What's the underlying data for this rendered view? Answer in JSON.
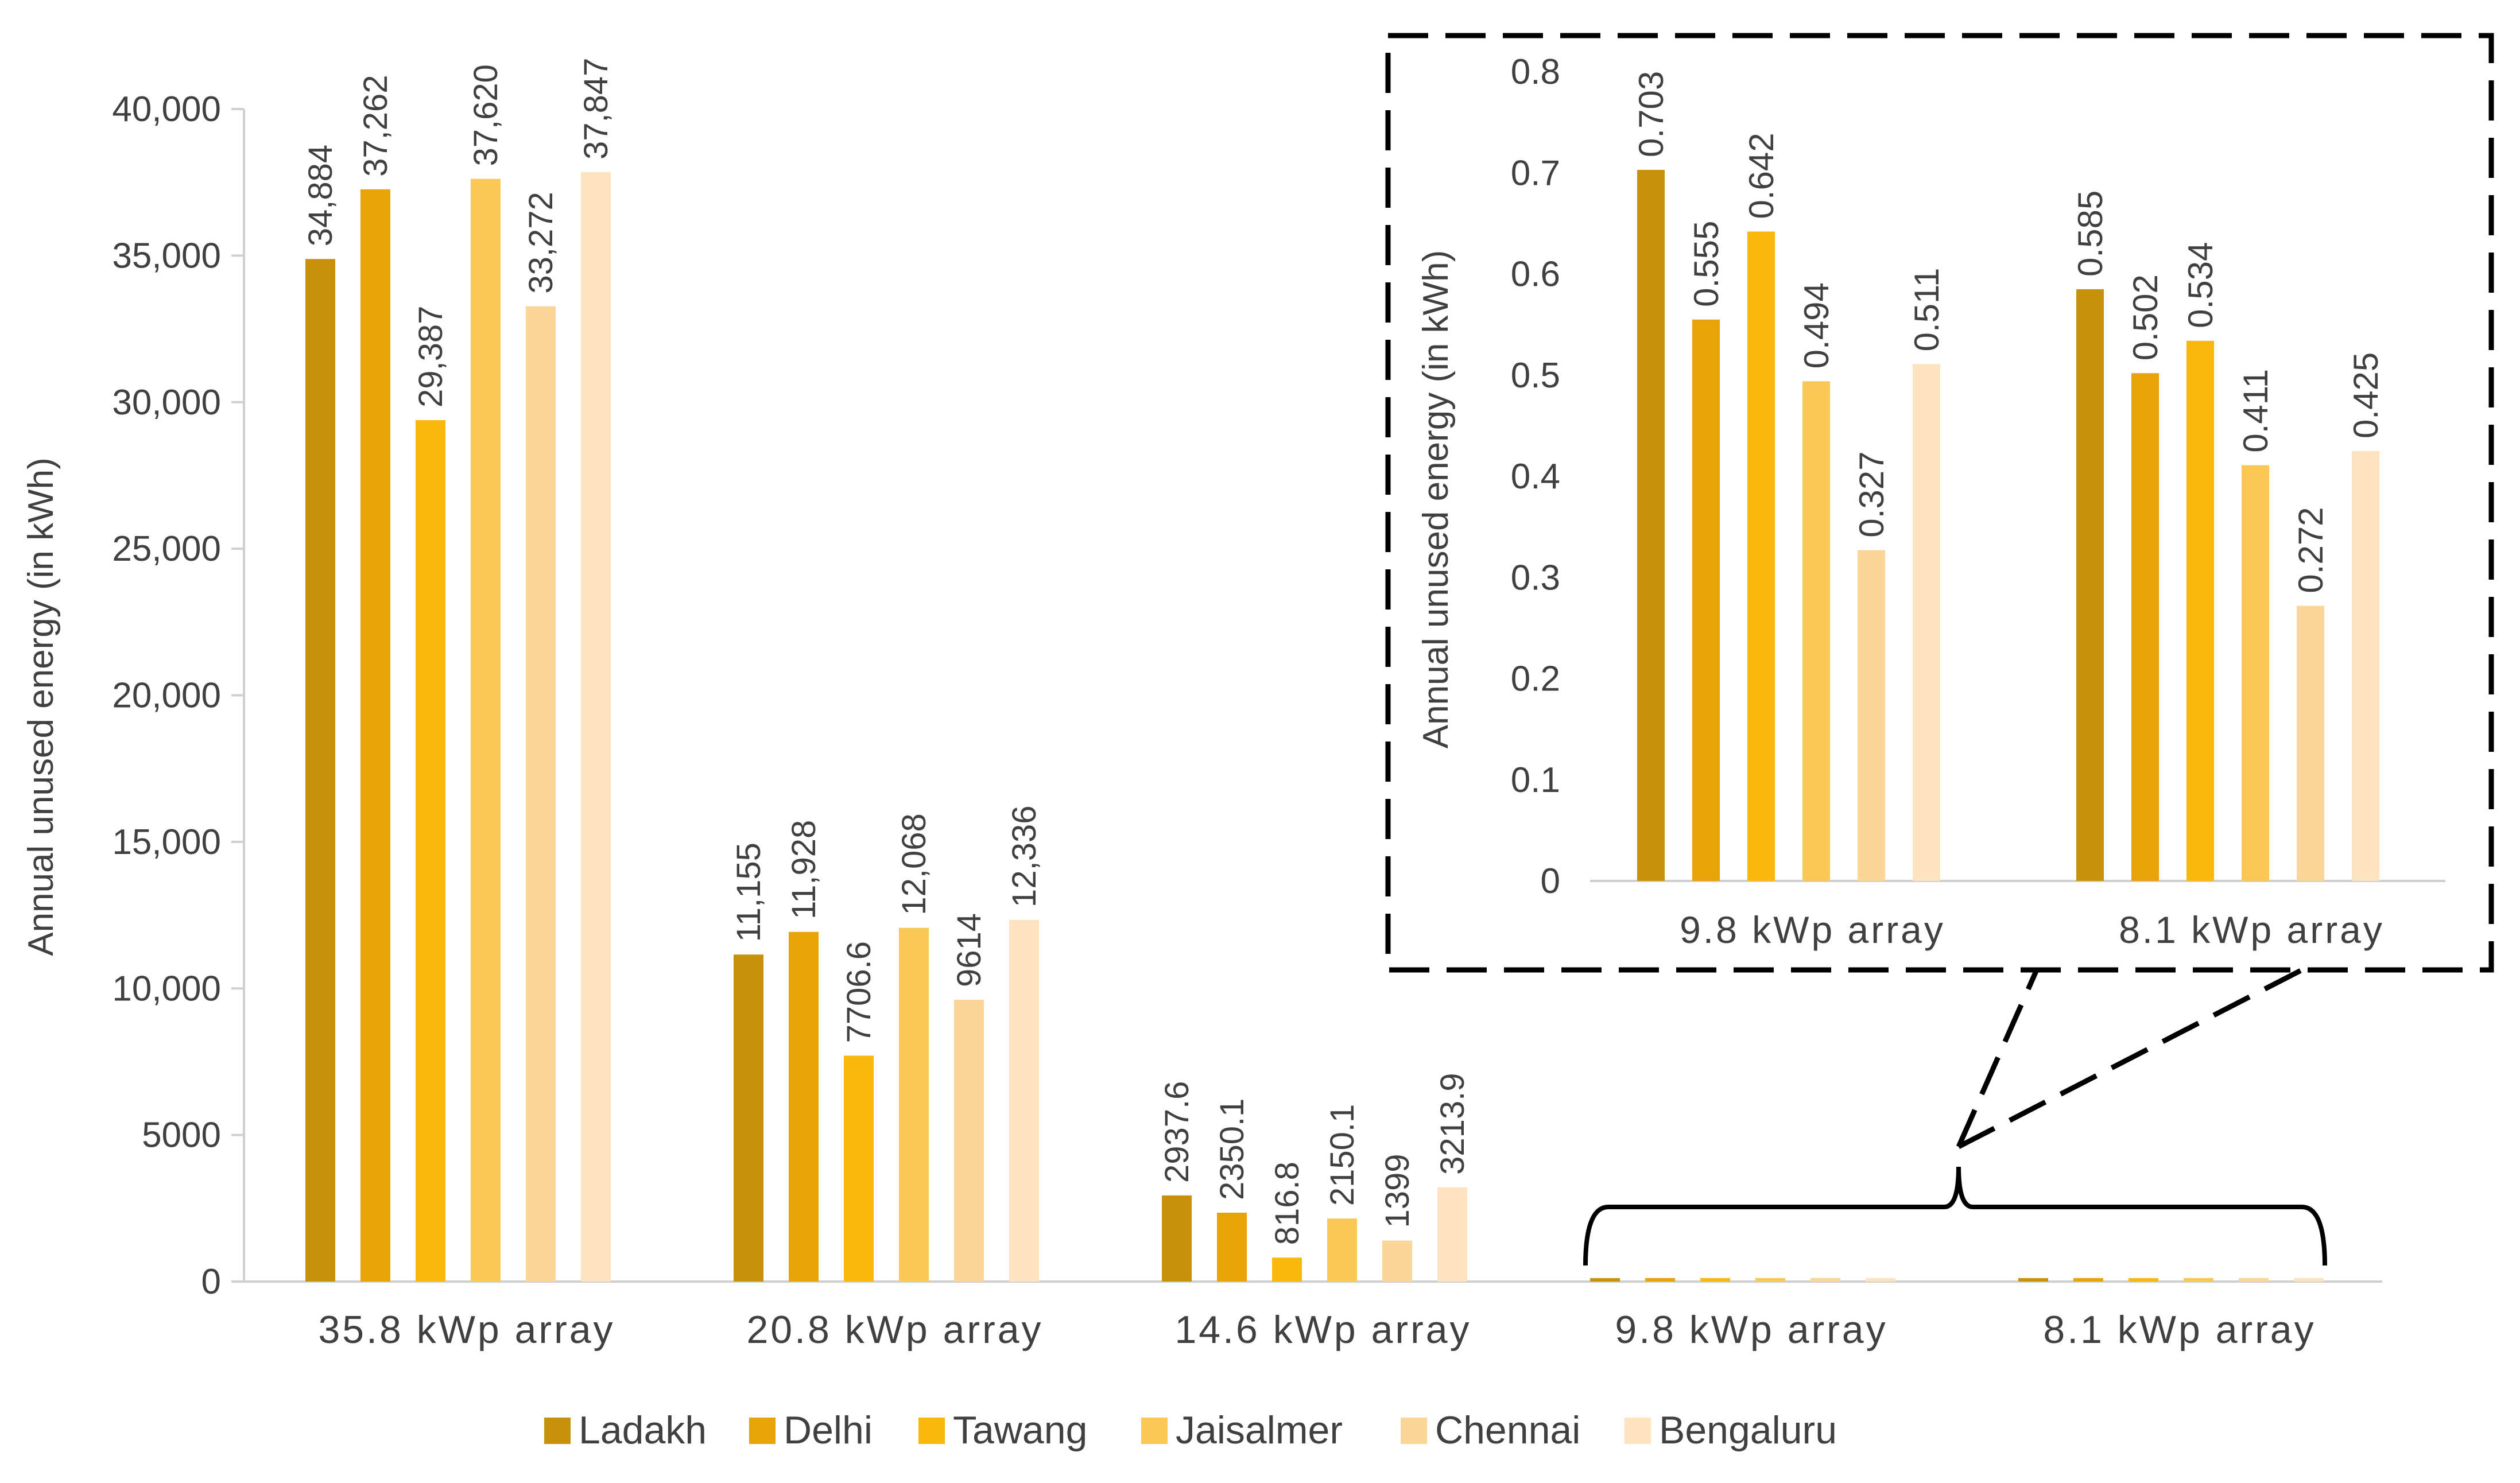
{
  "chart_data": [
    {
      "type": "bar",
      "title": "",
      "xlabel": "",
      "ylabel": "Annual unused energy (in kWh)",
      "ylim": [
        0,
        40000
      ],
      "yticks": [
        0,
        5000,
        10000,
        15000,
        20000,
        25000,
        30000,
        35000,
        40000
      ],
      "ytick_labels": [
        "0",
        "5000",
        "10,000",
        "15,000",
        "20,000",
        "25,000",
        "30,000",
        "35,000",
        "40,000"
      ],
      "grid": false,
      "categories": [
        "35.8 kWp array",
        "20.8 kWp array",
        "14.6 kWp array",
        "9.8 kWp array",
        "8.1 kWp array"
      ],
      "series": [
        {
          "name": "Ladakh",
          "color": "#C8910A",
          "values": [
            34884,
            11155,
            2937.6,
            0.703,
            0.585
          ],
          "labels": [
            "34,884",
            "11,155",
            "2937.6",
            "",
            ""
          ]
        },
        {
          "name": "Delhi",
          "color": "#E8A406",
          "values": [
            37262,
            11928,
            2350.1,
            0.555,
            0.502
          ],
          "labels": [
            "37,262",
            "11,928",
            "2350.1",
            "",
            ""
          ]
        },
        {
          "name": "Tawang",
          "color": "#F9B90C",
          "values": [
            29387,
            7706.6,
            816.8,
            0.642,
            0.534
          ],
          "labels": [
            "29,387",
            "7706.6",
            "816.8",
            "",
            ""
          ]
        },
        {
          "name": "Jaisalmer",
          "color": "#FAC854",
          "values": [
            37620,
            12068,
            2150.1,
            0.494,
            0.411
          ],
          "labels": [
            "37,620",
            "12,068",
            "2150.1",
            "",
            ""
          ]
        },
        {
          "name": "Chennai",
          "color": "#FBD696",
          "values": [
            33272,
            9614,
            1399,
            0.327,
            0.272
          ],
          "labels": [
            "33,272",
            "9614",
            "1399",
            "",
            ""
          ]
        },
        {
          "name": "Bengaluru",
          "color": "#FDE3BE",
          "values": [
            37847,
            12336,
            3213.9,
            0.511,
            0.425
          ],
          "labels": [
            "37,847",
            "12,336",
            "3213.9",
            "",
            ""
          ]
        }
      ],
      "legend": "bottom"
    },
    {
      "type": "bar",
      "title": "",
      "xlabel": "",
      "ylabel": "Annual unused energy (in kWh)",
      "ylim": [
        0,
        0.8
      ],
      "yticks": [
        0,
        0.1,
        0.2,
        0.3,
        0.4,
        0.5,
        0.6,
        0.7,
        0.8
      ],
      "ytick_labels": [
        "0",
        "0.1",
        "0.2",
        "0.3",
        "0.4",
        "0.5",
        "0.6",
        "0.7",
        "0.8"
      ],
      "grid": false,
      "categories": [
        "9.8 kWp array",
        "8.1 kWp array"
      ],
      "series": [
        {
          "name": "Ladakh",
          "color": "#C8910A",
          "values": [
            0.703,
            0.585
          ],
          "labels": [
            "0.703",
            "0.585"
          ]
        },
        {
          "name": "Delhi",
          "color": "#E8A406",
          "values": [
            0.555,
            0.502
          ],
          "labels": [
            "0.555",
            "0.502"
          ]
        },
        {
          "name": "Tawang",
          "color": "#F9B90C",
          "values": [
            0.642,
            0.534
          ],
          "labels": [
            "0.642",
            "0.534"
          ]
        },
        {
          "name": "Jaisalmer",
          "color": "#FAC854",
          "values": [
            0.494,
            0.411
          ],
          "labels": [
            "0.494",
            "0.411"
          ]
        },
        {
          "name": "Chennai",
          "color": "#FBD696",
          "values": [
            0.327,
            0.272
          ],
          "labels": [
            "0.327",
            "0.272"
          ]
        },
        {
          "name": "Bengaluru",
          "color": "#FDE3BE",
          "values": [
            0.511,
            0.425
          ],
          "labels": [
            "0.511",
            "0.425"
          ]
        }
      ],
      "annotation": "zoomed inset of the 9.8 and 8.1 kWp array groups"
    }
  ]
}
